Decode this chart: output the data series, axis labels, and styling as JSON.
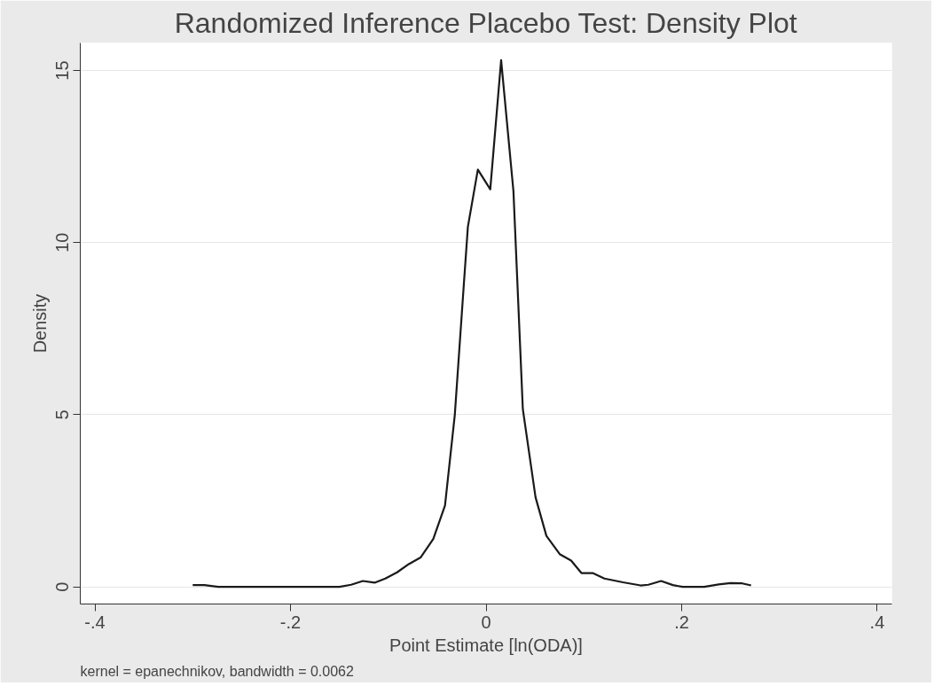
{
  "chart_data": {
    "type": "line",
    "title": "Randomized Inference Placebo Test: Density Plot",
    "xlabel": "Point Estimate [ln(ODA)]",
    "ylabel": "Density",
    "annotations": [
      "kernel = epanechnikov, bandwidth = 0.0062"
    ],
    "x": [
      -0.3,
      -0.288,
      -0.274,
      -0.15,
      -0.138,
      -0.126,
      -0.114,
      -0.103,
      -0.091,
      -0.079,
      -0.067,
      -0.054,
      -0.042,
      -0.032,
      -0.023,
      -0.0186,
      -0.0084,
      0.0043,
      0.0154,
      0.028,
      0.0376,
      0.0506,
      0.0617,
      0.0753,
      0.087,
      0.0975,
      0.109,
      0.121,
      0.14,
      0.158,
      0.166,
      0.179,
      0.191,
      0.201,
      0.223,
      0.238,
      0.25,
      0.262,
      0.271
    ],
    "series": [
      {
        "color": "#1a1a1a",
        "values": [
          0.05,
          0.05,
          0,
          0,
          0.06,
          0.17,
          0.12,
          0.24,
          0.42,
          0.66,
          0.85,
          1.39,
          2.36,
          4.99,
          8.68,
          10.46,
          12.12,
          11.55,
          15.3,
          11.49,
          5.16,
          2.6,
          1.48,
          0.95,
          0.76,
          0.4,
          0.4,
          0.24,
          0.13,
          0.04,
          0.06,
          0.17,
          0.05,
          0,
          0,
          0.07,
          0.11,
          0.1,
          0.04
        ]
      }
    ],
    "xlim": [
      -0.415,
      0.415
    ],
    "ylim": [
      -0.5,
      15.8
    ],
    "xticks": [
      {
        "value": -0.4,
        "label": "-.4"
      },
      {
        "value": -0.2,
        "label": "-.2"
      },
      0,
      {
        "value": 0.2,
        "label": ".2"
      },
      {
        "value": 0.4,
        "label": ".4"
      }
    ],
    "yticks": [
      0,
      5,
      10,
      15
    ],
    "grid": "y",
    "marker": "none",
    "line_style": "solid"
  }
}
